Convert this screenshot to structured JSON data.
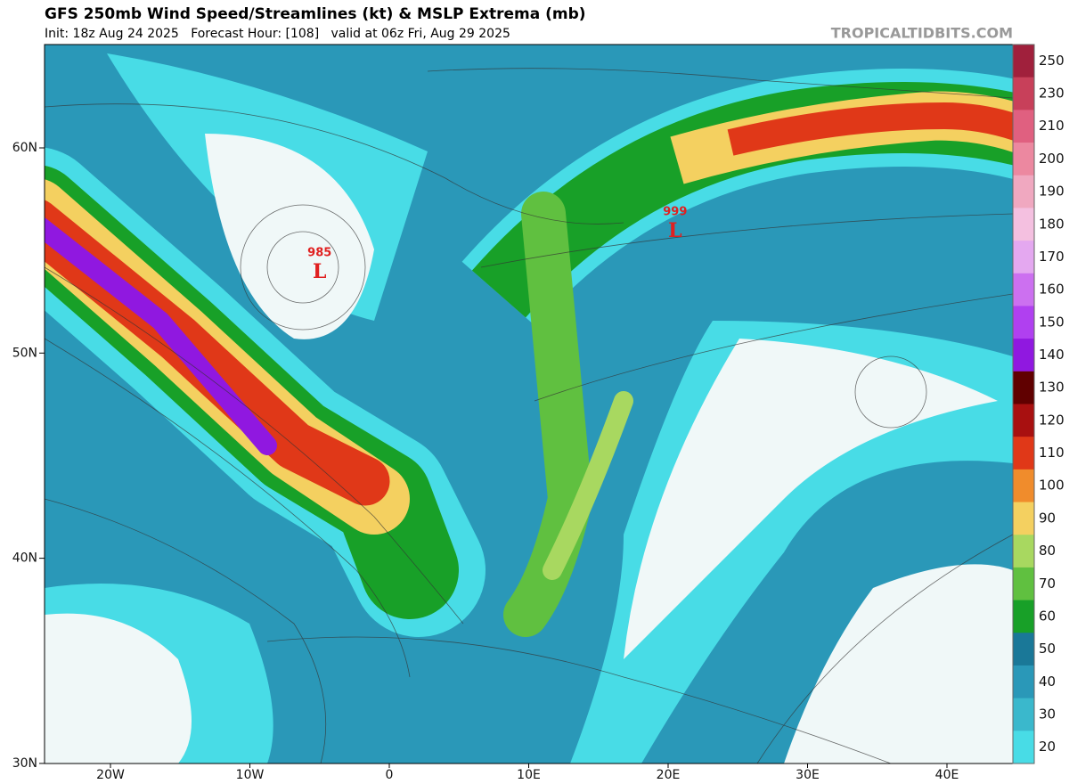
{
  "header": {
    "title": "GFS 250mb Wind Speed/Streamlines (kt) & MSLP Extrema (mb)",
    "subtitle": "Init: 18z Aug 24 2025   Forecast Hour: [108]   valid at 06z Fri, Aug 29 2025",
    "site": "TROPICALTIDBITS.COM"
  },
  "map": {
    "lat_labels": [
      {
        "value": 60,
        "label": "60N"
      },
      {
        "value": 50,
        "label": "50N"
      },
      {
        "value": 40,
        "label": "40N"
      },
      {
        "value": 30,
        "label": "30N"
      }
    ],
    "lon_labels": [
      {
        "value": -20,
        "label": "20W"
      },
      {
        "value": -10,
        "label": "10W"
      },
      {
        "value": 0,
        "label": "0"
      },
      {
        "value": 10,
        "label": "10E"
      },
      {
        "value": 20,
        "label": "20E"
      },
      {
        "value": 30,
        "label": "30E"
      },
      {
        "value": 40,
        "label": "40E"
      }
    ],
    "lows": [
      {
        "pressure": "985",
        "symbol": "L",
        "lon": -5,
        "lat": 54
      },
      {
        "pressure": "999",
        "symbol": "L",
        "lon": 20.5,
        "lat": 56
      }
    ]
  },
  "colorbar": {
    "levels": [
      250,
      230,
      210,
      200,
      190,
      180,
      170,
      160,
      150,
      140,
      130,
      120,
      110,
      100,
      90,
      80,
      70,
      60,
      50,
      40,
      30,
      20
    ],
    "colors": [
      "#a0203c",
      "#c8405a",
      "#e06080",
      "#ec88a0",
      "#f0a8c0",
      "#f4c0e0",
      "#e4a8f0",
      "#cc70f0",
      "#b040f0",
      "#9018e0",
      "#600000",
      "#a81010",
      "#e03818",
      "#f08c2c",
      "#f4d060",
      "#a8d860",
      "#60c040",
      "#18a028",
      "#1a7898",
      "#2a98b8",
      "#3ab8cc",
      "#48dce6"
    ]
  }
}
